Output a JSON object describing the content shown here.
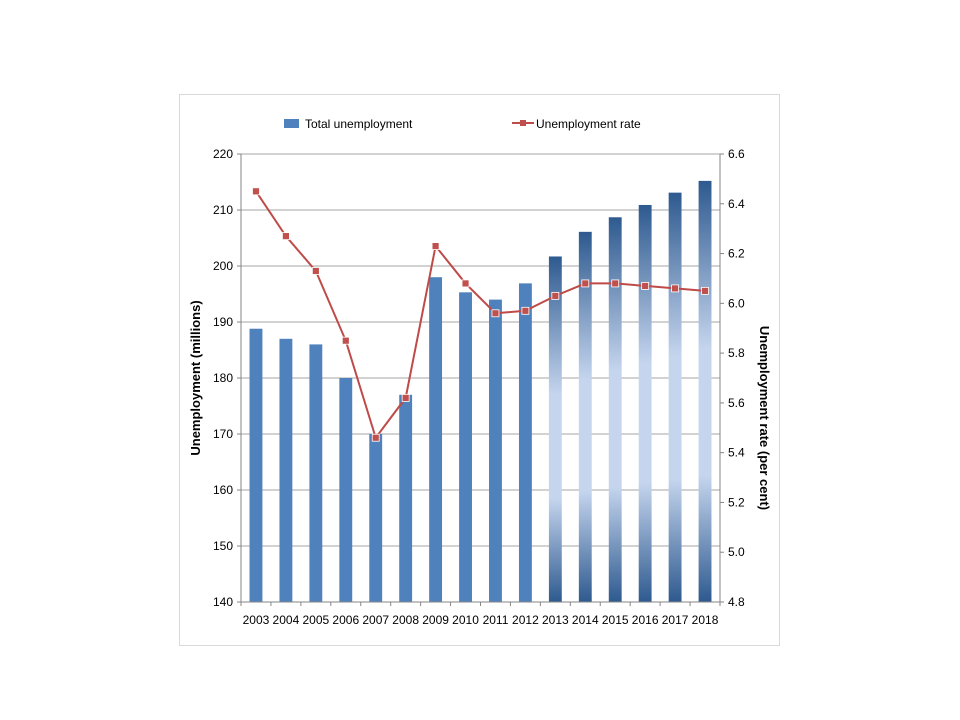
{
  "chart_data": {
    "type": "bar+line",
    "categories": [
      "2003",
      "2004",
      "2005",
      "2006",
      "2007",
      "2008",
      "2009",
      "2010",
      "2011",
      "2012",
      "2013",
      "2014",
      "2015",
      "2016",
      "2017",
      "2018"
    ],
    "series": [
      {
        "name": "Total unemployment",
        "type": "bar",
        "axis": "left",
        "values": [
          188.8,
          187.0,
          186.0,
          180.0,
          170.0,
          177.0,
          198.0,
          195.3,
          194.0,
          196.9,
          201.7,
          206.1,
          208.7,
          210.9,
          213.1,
          215.2
        ],
        "projected_from": "2013"
      },
      {
        "name": "Unemployment rate",
        "type": "line",
        "axis": "right",
        "values": [
          6.45,
          6.27,
          6.13,
          5.85,
          5.46,
          5.62,
          6.23,
          6.08,
          5.96,
          5.97,
          6.03,
          6.08,
          6.08,
          6.07,
          6.06,
          6.05
        ]
      }
    ],
    "ylabel": "Unemployment (millions)",
    "y2label": "Unemployment rate (per cent)",
    "ylim": [
      140,
      220
    ],
    "y2lim": [
      4.8,
      6.6
    ],
    "yticks": [
      "140",
      "150",
      "160",
      "170",
      "180",
      "190",
      "200",
      "210",
      "220"
    ],
    "y2ticks": [
      "4.8",
      "5.0",
      "5.2",
      "5.4",
      "5.6",
      "5.8",
      "6.0",
      "6.2",
      "6.4",
      "6.6"
    ],
    "grid": true,
    "legend_position": "top",
    "colors": {
      "bar": "#4f81bd",
      "bar_projected_dark": "#2e5a8f",
      "bar_projected_light": "#c5d5ee",
      "line": "#be4b48",
      "marker": "#c0504d",
      "grid": "#a6a6a6"
    }
  }
}
